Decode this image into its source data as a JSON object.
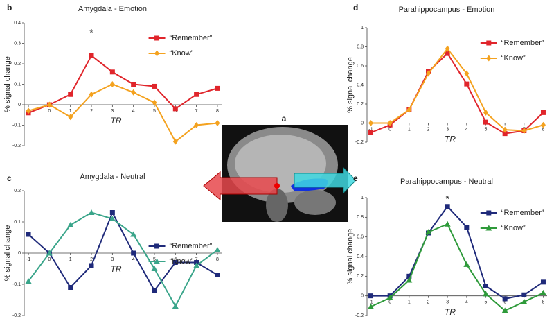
{
  "figure_panel": {
    "label": "a"
  },
  "chart_data": [
    {
      "type": "line",
      "label": "b",
      "title": "Amygdala - Emotion",
      "xlabel": "TR",
      "ylabel": "% signal change",
      "x": [
        -1,
        0,
        1,
        2,
        3,
        4,
        5,
        6,
        7,
        8
      ],
      "xlim": [
        -1.2,
        8.2
      ],
      "xticks": [
        -1,
        0,
        1,
        2,
        3,
        4,
        5,
        6,
        7,
        8
      ],
      "ylim": [
        -0.2,
        0.4
      ],
      "yticks": [
        -0.2,
        -0.1,
        0,
        0.1,
        0.2,
        0.3,
        0.4
      ],
      "legend": "upper right",
      "series": [
        {
          "name": "“Remember”",
          "color": "#e0252b",
          "marker": "square",
          "values": [
            -0.04,
            0,
            0.05,
            0.24,
            0.16,
            0.1,
            0.09,
            -0.02,
            0.05,
            0.08
          ]
        },
        {
          "name": "“Know”",
          "color": "#f4a21f",
          "marker": "diamond",
          "values": [
            -0.03,
            0,
            -0.06,
            0.05,
            0.1,
            0.06,
            0.01,
            -0.18,
            -0.1,
            -0.09
          ]
        }
      ],
      "annotations": [
        {
          "text": "*",
          "x": 2,
          "y": 0.35
        }
      ]
    },
    {
      "type": "line",
      "label": "c",
      "title": "Amygdala - Neutral",
      "xlabel": "TR",
      "ylabel": "% signal change",
      "x": [
        -1,
        0,
        1,
        2,
        3,
        4,
        5,
        6,
        7,
        8
      ],
      "xlim": [
        -1.2,
        8.2
      ],
      "xticks": [
        -1,
        0,
        1,
        2,
        3,
        4,
        5,
        6,
        7,
        8
      ],
      "ylim": [
        -0.2,
        0.2
      ],
      "yticks": [
        -0.2,
        -0.1,
        0,
        0.1,
        0.2
      ],
      "legend": "center right",
      "series": [
        {
          "name": "“Remember”",
          "color": "#1f2a7a",
          "marker": "square",
          "values": [
            0.06,
            0,
            -0.11,
            -0.04,
            0.13,
            0,
            -0.12,
            -0.03,
            -0.03,
            -0.07
          ]
        },
        {
          "name": "“Know”",
          "color": "#3aa58a",
          "marker": "triangle",
          "values": [
            -0.09,
            0,
            0.09,
            0.13,
            0.11,
            0.06,
            -0.05,
            -0.17,
            -0.04,
            0.01
          ]
        }
      ],
      "annotations": []
    },
    {
      "type": "line",
      "label": "d",
      "title": "Parahippocampus - Emotion",
      "xlabel": "TR",
      "ylabel": "% signal change",
      "x": [
        -1,
        0,
        1,
        2,
        3,
        4,
        5,
        6,
        7,
        8
      ],
      "xlim": [
        -1.2,
        8.2
      ],
      "xticks": [
        -1,
        0,
        1,
        2,
        3,
        4,
        5,
        6,
        7,
        8
      ],
      "ylim": [
        -0.2,
        1
      ],
      "yticks": [
        -0.2,
        0,
        0.2,
        0.4,
        0.6,
        0.8,
        1
      ],
      "legend": "upper right",
      "series": [
        {
          "name": "“Remember”",
          "color": "#e0252b",
          "marker": "square",
          "values": [
            -0.1,
            -0.02,
            0.14,
            0.54,
            0.73,
            0.41,
            0.01,
            -0.11,
            -0.08,
            0.11
          ]
        },
        {
          "name": "“Know”",
          "color": "#f4a21f",
          "marker": "diamond",
          "values": [
            0,
            0,
            0.14,
            0.52,
            0.78,
            0.52,
            0.11,
            -0.07,
            -0.08,
            -0.02
          ]
        }
      ],
      "annotations": []
    },
    {
      "type": "line",
      "label": "e",
      "title": "Parahippocampus - Neutral",
      "xlabel": "TR",
      "ylabel": "% signal change",
      "x": [
        -1,
        0,
        1,
        2,
        3,
        4,
        5,
        6,
        7,
        8
      ],
      "xlim": [
        -1.2,
        8.2
      ],
      "xticks": [
        -1,
        0,
        1,
        2,
        3,
        4,
        5,
        6,
        7,
        8
      ],
      "ylim": [
        -0.2,
        1
      ],
      "yticks": [
        -0.2,
        0,
        0.2,
        0.4,
        0.6,
        0.8,
        1
      ],
      "legend": "upper right",
      "series": [
        {
          "name": "“Remember”",
          "color": "#1f2a7a",
          "marker": "square",
          "values": [
            0,
            0,
            0.2,
            0.64,
            0.91,
            0.7,
            0.1,
            -0.03,
            0.01,
            0.14
          ]
        },
        {
          "name": "“Know”",
          "color": "#2e9a3a",
          "marker": "triangle",
          "values": [
            -0.11,
            -0.02,
            0.16,
            0.65,
            0.73,
            0.32,
            0.02,
            -0.15,
            -0.06,
            0.03
          ]
        }
      ],
      "annotations": [
        {
          "text": "*",
          "x": 3,
          "y": 0.98
        }
      ]
    }
  ]
}
